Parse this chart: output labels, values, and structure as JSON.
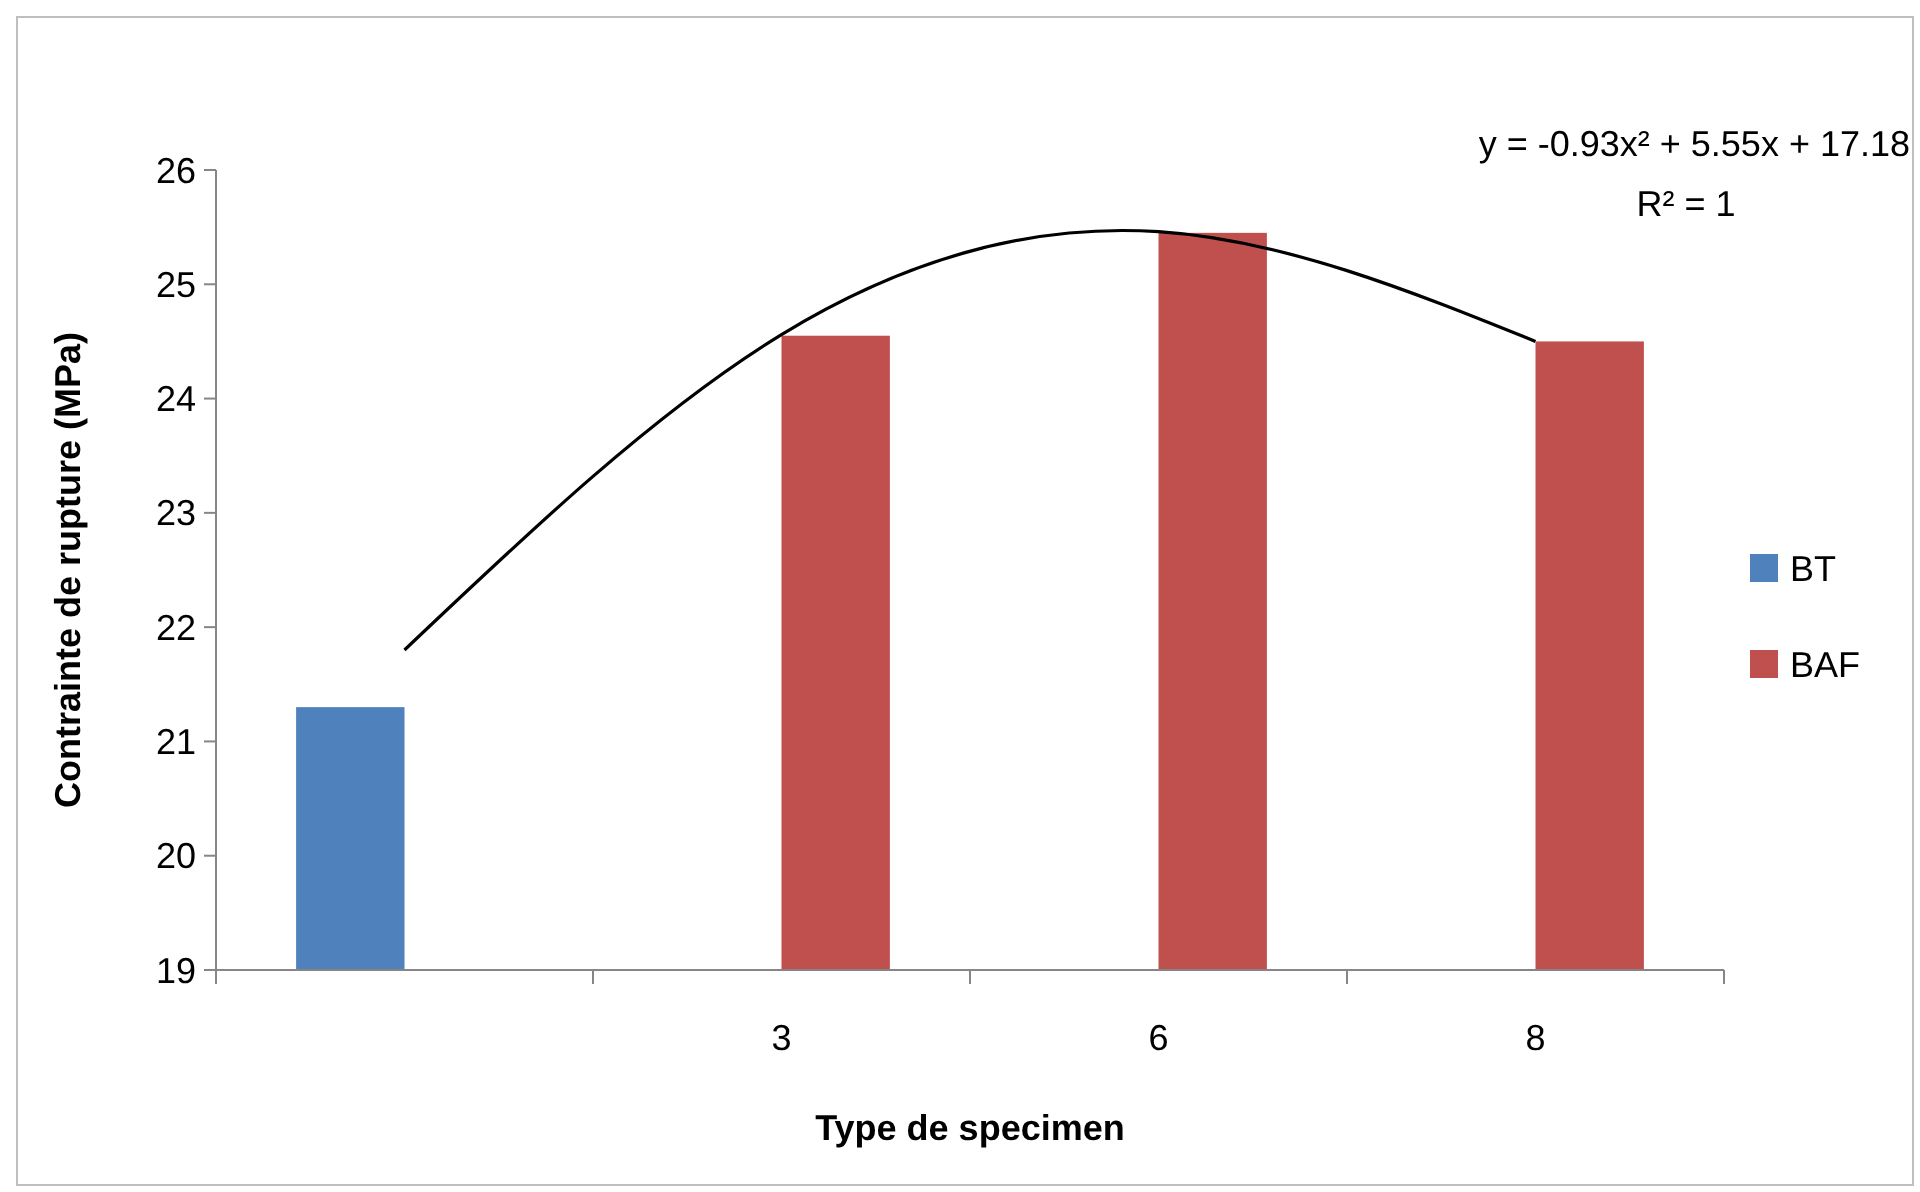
{
  "chart_data": {
    "type": "bar",
    "xlabel": "Type de specimen",
    "ylabel": "Contrainte de rupture (MPa)",
    "categories": [
      null,
      "3",
      "6",
      "8"
    ],
    "series": [
      {
        "name": "BT",
        "color": "#4f81bd",
        "values": [
          21.3,
          null,
          null,
          null
        ]
      },
      {
        "name": "BAF",
        "color": "#c0504d",
        "values": [
          null,
          24.55,
          25.45,
          24.5
        ]
      },
      {
        "type": "line",
        "color": "#000000",
        "x": [
          null,
          "3",
          "6",
          "8"
        ],
        "values": [
          21.8,
          24.56,
          25.46,
          24.5
        ]
      }
    ],
    "ylim": [
      19,
      26
    ],
    "yticks": [
      19,
      20,
      21,
      22,
      23,
      24,
      25,
      26
    ],
    "grid": false,
    "legend": "right",
    "marker": "none",
    "annotations": [
      "y = -0.93x² + 5.55x + 17.18",
      "R² = 1"
    ]
  }
}
